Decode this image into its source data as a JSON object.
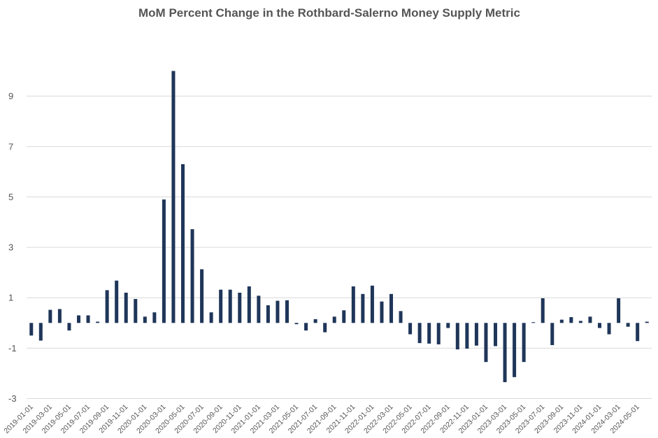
{
  "chart_data": {
    "type": "bar",
    "title": "MoM Percent Change in the Rothbard-Salerno Money Supply Metric",
    "xlabel": "",
    "ylabel": "",
    "ylim": [
      -3,
      11
    ],
    "yticks": [
      9,
      7,
      5,
      3,
      1,
      -1,
      -3
    ],
    "grid": true,
    "bar_color": "#1f3659",
    "categories": [
      "2019-01-01",
      "2019-02-01",
      "2019-03-01",
      "2019-04-01",
      "2019-05-01",
      "2019-06-01",
      "2019-07-01",
      "2019-08-01",
      "2019-09-01",
      "2019-10-01",
      "2019-11-01",
      "2019-12-01",
      "2020-01-01",
      "2020-02-01",
      "2020-03-01",
      "2020-04-01",
      "2020-05-01",
      "2020-06-01",
      "2020-07-01",
      "2020-08-01",
      "2020-09-01",
      "2020-10-01",
      "2020-11-01",
      "2020-12-01",
      "2021-01-01",
      "2021-02-01",
      "2021-03-01",
      "2021-04-01",
      "2021-05-01",
      "2021-06-01",
      "2021-07-01",
      "2021-08-01",
      "2021-09-01",
      "2021-10-01",
      "2021-11-01",
      "2021-12-01",
      "2022-01-01",
      "2022-02-01",
      "2022-03-01",
      "2022-04-01",
      "2022-05-01",
      "2022-06-01",
      "2022-07-01",
      "2022-08-01",
      "2022-09-01",
      "2022-10-01",
      "2022-11-01",
      "2022-12-01",
      "2023-01-01",
      "2023-02-01",
      "2023-03-01",
      "2023-04-01",
      "2023-05-01",
      "2023-06-01",
      "2023-07-01",
      "2023-08-01",
      "2023-09-01",
      "2023-10-01",
      "2023-11-01",
      "2023-12-01",
      "2024-01-01",
      "2024-02-01",
      "2024-03-01",
      "2024-04-01",
      "2024-05-01",
      "2024-06-01"
    ],
    "tick_labels": [
      "2019-01-01",
      "2019-03-01",
      "2019-05-01",
      "2019-07-01",
      "2019-09-01",
      "2019-11-01",
      "2020-01-01",
      "2020-03-01",
      "2020-05-01",
      "2020-07-01",
      "2020-09-01",
      "2020-11-01",
      "2021-01-01",
      "2021-03-01",
      "2021-05-01",
      "2021-07-01",
      "2021-09-01",
      "2021-11-01",
      "2022-01-01",
      "2022-03-01",
      "2022-05-01",
      "2022-07-01",
      "2022-09-01",
      "2022-11-01",
      "2023-01-01",
      "2023-03-01",
      "2023-05-01",
      "2023-07-01",
      "2023-09-01",
      "2023-11-01",
      "2024-01-01",
      "2024-03-01",
      "2024-05-01"
    ],
    "values": [
      -0.5,
      -0.7,
      0.52,
      0.55,
      -0.3,
      0.3,
      0.3,
      0.05,
      1.3,
      1.68,
      1.2,
      0.95,
      0.25,
      0.42,
      4.9,
      10.0,
      6.3,
      3.72,
      2.13,
      0.42,
      1.32,
      1.32,
      1.2,
      1.45,
      1.08,
      0.7,
      0.88,
      0.9,
      -0.05,
      -0.3,
      0.15,
      -0.37,
      0.25,
      0.5,
      1.45,
      1.15,
      1.48,
      0.85,
      1.15,
      0.47,
      -0.45,
      -0.8,
      -0.82,
      -0.85,
      -0.2,
      -1.05,
      -1.02,
      -0.9,
      -1.55,
      -0.92,
      -2.35,
      -2.15,
      -1.55,
      0.03,
      0.98,
      -0.88,
      0.13,
      0.23,
      0.08,
      0.25,
      -0.2,
      -0.45,
      0.98,
      -0.15,
      -0.72,
      0.05
    ]
  }
}
